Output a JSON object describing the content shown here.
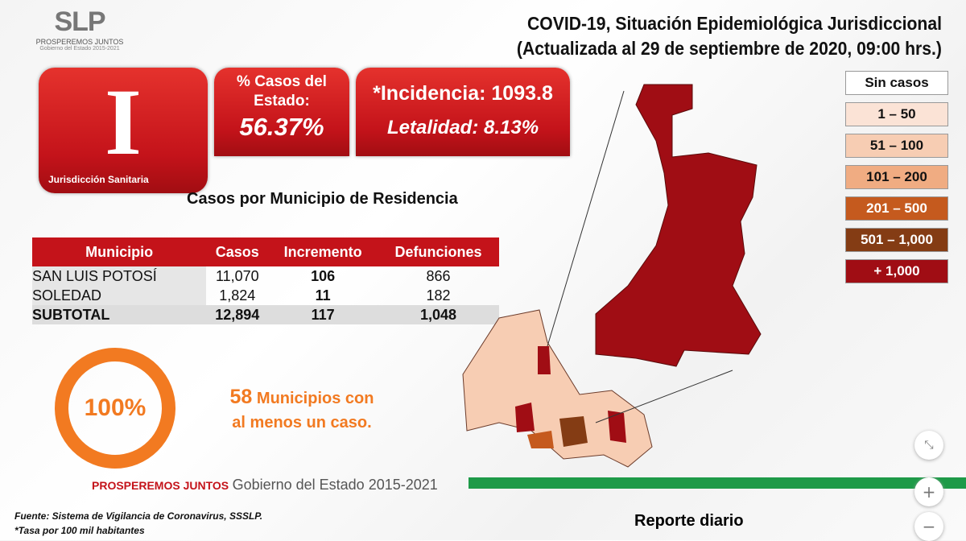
{
  "logo": {
    "mark": "SLP",
    "line1": "PROSPEREMOS JUNTOS",
    "line2": "Gobierno del Estado 2015-2021"
  },
  "header": {
    "title1": "COVID-19, Situación Epidemiológica Jurisdiccional",
    "title2": "(Actualizada al 29 de septiembre de 2020, 09:00 hrs.)"
  },
  "jurisdiction": {
    "numeral": "I",
    "label": "Jurisdicción Sanitaria"
  },
  "state_pct": {
    "label": "% Casos del Estado:",
    "value": "56.37%"
  },
  "rates": {
    "incidence": "*Incidencia: 1093.8",
    "lethality": "Letalidad: 8.13%"
  },
  "table": {
    "title": "Casos por Municipio  de Residencia",
    "headers": [
      "Municipio",
      "Casos",
      "Incremento",
      "Defunciones"
    ],
    "rows": [
      [
        "SAN LUIS POTOSÍ",
        "11,070",
        "106",
        "866"
      ],
      [
        "SOLEDAD",
        "1,824",
        "11",
        "182"
      ]
    ],
    "subtotal": [
      "SUBTOTAL",
      "12,894",
      "117",
      "1,048"
    ]
  },
  "coverage": {
    "percent": "100%",
    "count": "58",
    "text1": "Municipios con",
    "text2": "al menos un caso."
  },
  "legend": [
    {
      "label": "Sin casos",
      "color": "#ffffff",
      "text": "#111"
    },
    {
      "label": "1 – 50",
      "color": "#fbe3d6",
      "text": "#111"
    },
    {
      "label": "51 – 100",
      "color": "#f7cdb3",
      "text": "#111"
    },
    {
      "label": "101 – 200",
      "color": "#f0ac82",
      "text": "#111"
    },
    {
      "label": "201 – 500",
      "color": "#c55a1e",
      "text": "#fff"
    },
    {
      "label": "501 – 1,000",
      "color": "#843c14",
      "text": "#fff"
    },
    {
      "label": "+ 1,000",
      "color": "#a00d14",
      "text": "#fff"
    }
  ],
  "footer": {
    "brand": "PROSPEREMOS JUNTOS",
    "gov": "Gobierno del Estado 2015-2021",
    "source": "Fuente: Sistema de Vigilancia de Coronavirus, SSSLP.",
    "note": "*Tasa por 100 mil habitantes",
    "report": "Reporte diario"
  },
  "controls": {
    "fit": "⤡",
    "zoom_in": "+",
    "zoom_out": "−"
  }
}
